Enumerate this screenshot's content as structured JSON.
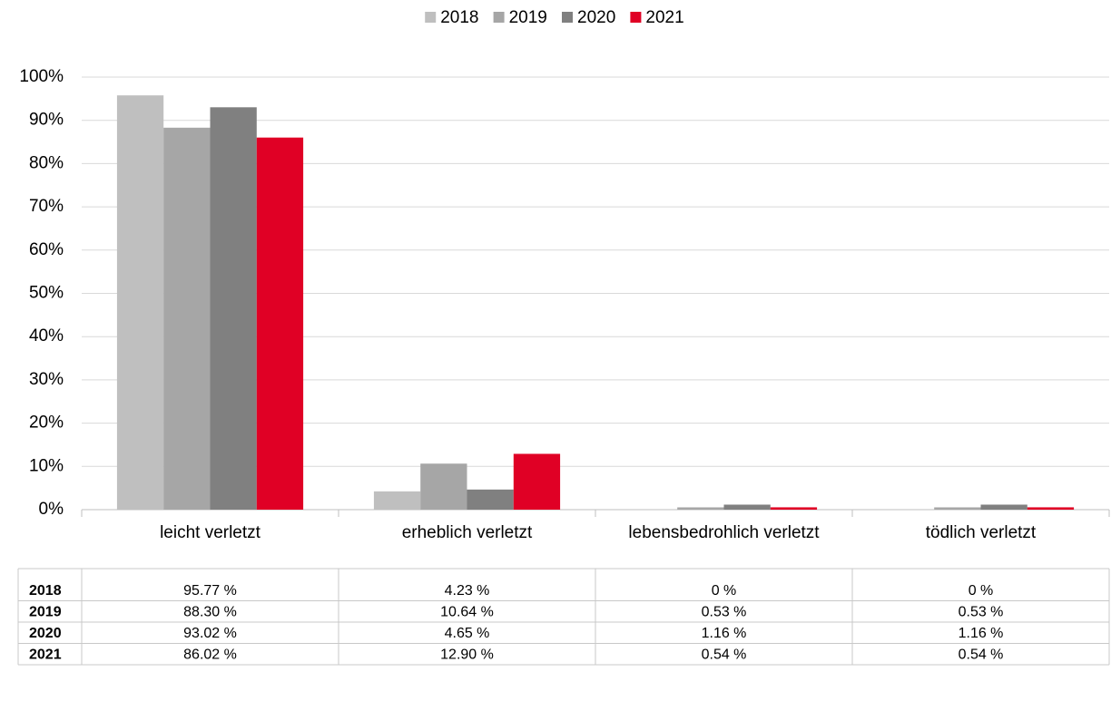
{
  "chart_data": {
    "type": "bar",
    "categories": [
      "leicht verletzt",
      "erheblich verletzt",
      "lebensbedrohlich verletzt",
      "tödlich verletzt"
    ],
    "series": [
      {
        "name": "2018",
        "color": "#bfbfbf",
        "values": [
          95.77,
          4.23,
          0,
          0
        ],
        "value_labels": [
          "95.77 %",
          "4.23 %",
          "0 %",
          "0 %"
        ]
      },
      {
        "name": "2019",
        "color": "#a6a6a6",
        "values": [
          88.3,
          10.64,
          0.53,
          0.53
        ],
        "value_labels": [
          "88.30 %",
          "10.64 %",
          "0.53 %",
          "0.53 %"
        ]
      },
      {
        "name": "2020",
        "color": "#808080",
        "values": [
          93.02,
          4.65,
          1.16,
          1.16
        ],
        "value_labels": [
          "93.02 %",
          "4.65 %",
          "1.16 %",
          "1.16 %"
        ]
      },
      {
        "name": "2021",
        "color": "#e00025",
        "values": [
          86.02,
          12.9,
          0.54,
          0.54
        ],
        "value_labels": [
          "86.02 %",
          "12.90 %",
          "0.54 %",
          "0.54 %"
        ]
      }
    ],
    "ylim": [
      0,
      100
    ],
    "yticks": [
      {
        "value": 0,
        "label": "0%"
      },
      {
        "value": 10,
        "label": "10%"
      },
      {
        "value": 20,
        "label": "20%"
      },
      {
        "value": 30,
        "label": "30%"
      },
      {
        "value": 40,
        "label": "40%"
      },
      {
        "value": 50,
        "label": "50%"
      },
      {
        "value": 60,
        "label": "60%"
      },
      {
        "value": 70,
        "label": "70%"
      },
      {
        "value": 80,
        "label": "80%"
      },
      {
        "value": 90,
        "label": "90%"
      },
      {
        "value": 100,
        "label": "100%"
      }
    ],
    "grid": true,
    "legend": "top"
  }
}
